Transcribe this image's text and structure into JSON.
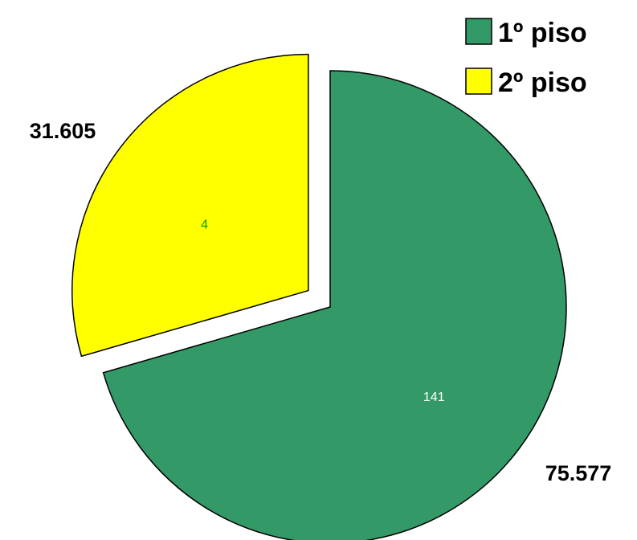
{
  "chart_data": {
    "type": "pie",
    "title": "",
    "slices": [
      {
        "name": "1º piso",
        "value": 75577,
        "value_label": "75.577",
        "inner_label": "141",
        "color": "#339966",
        "inner_label_color": "#ffffff",
        "exploded": false
      },
      {
        "name": "2º piso",
        "value": 31605,
        "value_label": "31.605",
        "inner_label": "4",
        "color": "#ffff00",
        "inner_label_color": "#009900",
        "exploded": true
      }
    ],
    "legend": {
      "position": "top-right",
      "entries": [
        "1º piso",
        "2º piso"
      ]
    },
    "start_angle_deg": 0,
    "direction": "clockwise",
    "slice_border_color": "#000000"
  }
}
